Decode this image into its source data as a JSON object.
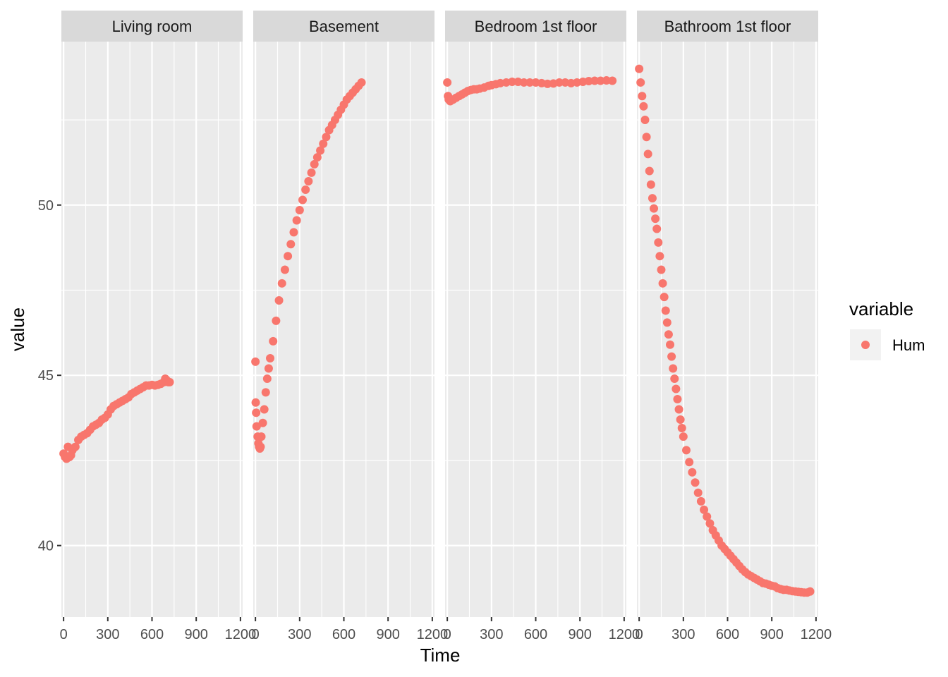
{
  "chart_data": {
    "type": "scatter",
    "xlabel": "Time",
    "ylabel": "value",
    "xlim": [
      -15,
      1215
    ],
    "ylim": [
      37.9,
      54.8
    ],
    "x_ticks": [
      0,
      300,
      600,
      900,
      1200
    ],
    "x_tick_labels": [
      "0",
      "300",
      "600",
      "900",
      "1200"
    ],
    "y_ticks": [
      40,
      45,
      50
    ],
    "y_tick_labels": [
      "40",
      "45",
      "50"
    ],
    "grid": true,
    "legend": {
      "title": "variable",
      "position": "right",
      "entries": [
        {
          "label": "Hum",
          "color": "#F8766D"
        }
      ]
    },
    "panels": [
      {
        "name": "Living room",
        "series": [
          {
            "name": "Hum",
            "color": "#F8766D",
            "points": [
              [
                0,
                42.7
              ],
              [
                10,
                42.6
              ],
              [
                20,
                42.55
              ],
              [
                30,
                42.9
              ],
              [
                40,
                42.6
              ],
              [
                50,
                42.65
              ],
              [
                60,
                42.8
              ],
              [
                80,
                42.9
              ],
              [
                100,
                43.1
              ],
              [
                120,
                43.2
              ],
              [
                140,
                43.25
              ],
              [
                160,
                43.3
              ],
              [
                180,
                43.4
              ],
              [
                200,
                43.5
              ],
              [
                220,
                43.55
              ],
              [
                240,
                43.6
              ],
              [
                260,
                43.7
              ],
              [
                280,
                43.75
              ],
              [
                300,
                43.85
              ],
              [
                320,
                44.0
              ],
              [
                340,
                44.1
              ],
              [
                360,
                44.15
              ],
              [
                380,
                44.2
              ],
              [
                400,
                44.25
              ],
              [
                420,
                44.3
              ],
              [
                440,
                44.35
              ],
              [
                460,
                44.45
              ],
              [
                480,
                44.5
              ],
              [
                500,
                44.55
              ],
              [
                520,
                44.6
              ],
              [
                540,
                44.65
              ],
              [
                560,
                44.7
              ],
              [
                580,
                44.7
              ],
              [
                600,
                44.72
              ],
              [
                620,
                44.7
              ],
              [
                640,
                44.72
              ],
              [
                660,
                44.75
              ],
              [
                680,
                44.8
              ],
              [
                690,
                44.9
              ],
              [
                700,
                44.85
              ],
              [
                710,
                44.8
              ],
              [
                720,
                44.8
              ]
            ]
          }
        ]
      },
      {
        "name": "Basement",
        "series": [
          {
            "name": "Hum",
            "color": "#F8766D",
            "points": [
              [
                0,
                45.4
              ],
              [
                2,
                44.2
              ],
              [
                5,
                43.9
              ],
              [
                8,
                43.5
              ],
              [
                15,
                43.2
              ],
              [
                20,
                43.0
              ],
              [
                25,
                42.9
              ],
              [
                30,
                42.85
              ],
              [
                35,
                42.9
              ],
              [
                40,
                43.2
              ],
              [
                50,
                43.6
              ],
              [
                60,
                44.0
              ],
              [
                70,
                44.5
              ],
              [
                80,
                44.9
              ],
              [
                90,
                45.2
              ],
              [
                100,
                45.5
              ],
              [
                120,
                46.0
              ],
              [
                140,
                46.6
              ],
              [
                160,
                47.2
              ],
              [
                180,
                47.7
              ],
              [
                200,
                48.1
              ],
              [
                220,
                48.5
              ],
              [
                240,
                48.85
              ],
              [
                260,
                49.2
              ],
              [
                280,
                49.55
              ],
              [
                300,
                49.85
              ],
              [
                320,
                50.15
              ],
              [
                340,
                50.45
              ],
              [
                360,
                50.7
              ],
              [
                380,
                50.95
              ],
              [
                400,
                51.2
              ],
              [
                420,
                51.4
              ],
              [
                440,
                51.6
              ],
              [
                460,
                51.8
              ],
              [
                480,
                52.0
              ],
              [
                500,
                52.2
              ],
              [
                520,
                52.35
              ],
              [
                540,
                52.5
              ],
              [
                560,
                52.65
              ],
              [
                580,
                52.8
              ],
              [
                600,
                52.95
              ],
              [
                620,
                53.1
              ],
              [
                640,
                53.2
              ],
              [
                660,
                53.3
              ],
              [
                680,
                53.4
              ],
              [
                700,
                53.5
              ],
              [
                720,
                53.6
              ]
            ]
          }
        ]
      },
      {
        "name": "Bedroom 1st floor",
        "series": [
          {
            "name": "Hum",
            "color": "#F8766D",
            "points": [
              [
                0,
                53.6
              ],
              [
                5,
                53.2
              ],
              [
                10,
                53.1
              ],
              [
                20,
                53.05
              ],
              [
                40,
                53.1
              ],
              [
                60,
                53.15
              ],
              [
                80,
                53.2
              ],
              [
                100,
                53.25
              ],
              [
                120,
                53.3
              ],
              [
                140,
                53.35
              ],
              [
                160,
                53.38
              ],
              [
                180,
                53.4
              ],
              [
                200,
                53.4
              ],
              [
                220,
                53.42
              ],
              [
                250,
                53.45
              ],
              [
                280,
                53.5
              ],
              [
                300,
                53.52
              ],
              [
                330,
                53.55
              ],
              [
                360,
                53.58
              ],
              [
                400,
                53.6
              ],
              [
                440,
                53.62
              ],
              [
                480,
                53.62
              ],
              [
                520,
                53.6
              ],
              [
                560,
                53.6
              ],
              [
                600,
                53.6
              ],
              [
                640,
                53.58
              ],
              [
                680,
                53.56
              ],
              [
                720,
                53.57
              ],
              [
                760,
                53.6
              ],
              [
                800,
                53.6
              ],
              [
                840,
                53.58
              ],
              [
                880,
                53.6
              ],
              [
                920,
                53.62
              ],
              [
                960,
                53.64
              ],
              [
                1000,
                53.65
              ],
              [
                1040,
                53.65
              ],
              [
                1080,
                53.66
              ],
              [
                1120,
                53.65
              ]
            ]
          }
        ]
      },
      {
        "name": "Bathroom 1st floor",
        "series": [
          {
            "name": "Hum",
            "color": "#F8766D",
            "points": [
              [
                0,
                54.0
              ],
              [
                10,
                53.6
              ],
              [
                20,
                53.2
              ],
              [
                30,
                52.9
              ],
              [
                40,
                52.5
              ],
              [
                50,
                52.0
              ],
              [
                60,
                51.5
              ],
              [
                70,
                51.0
              ],
              [
                80,
                50.6
              ],
              [
                90,
                50.2
              ],
              [
                100,
                49.9
              ],
              [
                110,
                49.6
              ],
              [
                120,
                49.3
              ],
              [
                130,
                48.9
              ],
              [
                140,
                48.5
              ],
              [
                150,
                48.1
              ],
              [
                160,
                47.7
              ],
              [
                170,
                47.3
              ],
              [
                180,
                46.9
              ],
              [
                190,
                46.55
              ],
              [
                200,
                46.2
              ],
              [
                210,
                45.9
              ],
              [
                220,
                45.55
              ],
              [
                230,
                45.2
              ],
              [
                240,
                44.9
              ],
              [
                250,
                44.6
              ],
              [
                260,
                44.3
              ],
              [
                270,
                44.0
              ],
              [
                280,
                43.7
              ],
              [
                290,
                43.45
              ],
              [
                300,
                43.2
              ],
              [
                320,
                42.8
              ],
              [
                340,
                42.45
              ],
              [
                360,
                42.15
              ],
              [
                380,
                41.85
              ],
              [
                400,
                41.55
              ],
              [
                420,
                41.3
              ],
              [
                440,
                41.05
              ],
              [
                460,
                40.85
              ],
              [
                480,
                40.65
              ],
              [
                500,
                40.45
              ],
              [
                520,
                40.3
              ],
              [
                540,
                40.15
              ],
              [
                560,
                40.0
              ],
              [
                580,
                39.9
              ],
              [
                600,
                39.8
              ],
              [
                620,
                39.7
              ],
              [
                640,
                39.6
              ],
              [
                660,
                39.5
              ],
              [
                680,
                39.4
              ],
              [
                700,
                39.3
              ],
              [
                720,
                39.22
              ],
              [
                740,
                39.15
              ],
              [
                760,
                39.1
              ],
              [
                780,
                39.05
              ],
              [
                800,
                39.0
              ],
              [
                820,
                38.95
              ],
              [
                840,
                38.9
              ],
              [
                860,
                38.88
              ],
              [
                880,
                38.85
              ],
              [
                900,
                38.82
              ],
              [
                920,
                38.8
              ],
              [
                940,
                38.75
              ],
              [
                960,
                38.72
              ],
              [
                980,
                38.7
              ],
              [
                1000,
                38.7
              ],
              [
                1020,
                38.68
              ],
              [
                1040,
                38.66
              ],
              [
                1060,
                38.65
              ],
              [
                1080,
                38.64
              ],
              [
                1100,
                38.63
              ],
              [
                1120,
                38.62
              ],
              [
                1140,
                38.62
              ],
              [
                1160,
                38.65
              ]
            ]
          }
        ]
      }
    ]
  }
}
